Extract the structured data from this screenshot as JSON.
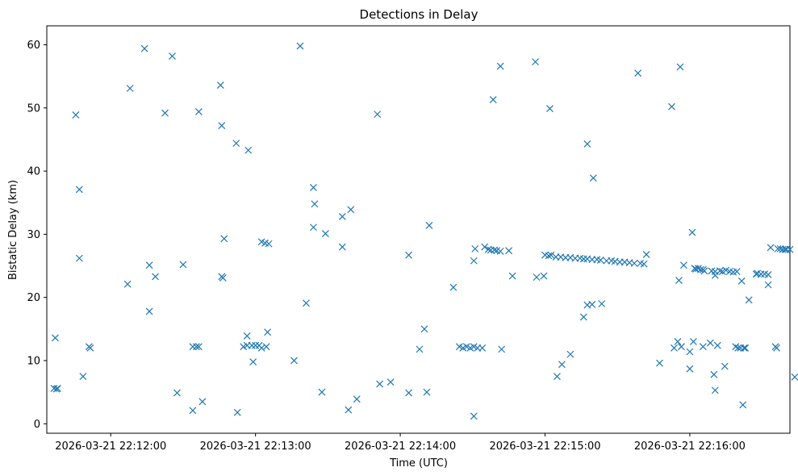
{
  "chart_data": {
    "type": "scatter",
    "title": "Detections in Delay",
    "xlabel": "Time (UTC)",
    "ylabel": "Bistatic Delay (km)",
    "marker": "x",
    "color": "#1f77b4",
    "xlim": [
      -26.5,
      281.5
    ],
    "ylim": [
      -1.5,
      63
    ],
    "x_unit": "seconds after 2026-03-21 22:12:00",
    "xticks": [
      {
        "value": 0,
        "label": "2026-03-21 22:12:00"
      },
      {
        "value": 60,
        "label": "2026-03-21 22:13:00"
      },
      {
        "value": 120,
        "label": "2026-03-21 22:14:00"
      },
      {
        "value": 180,
        "label": "2026-03-21 22:15:00"
      },
      {
        "value": 240,
        "label": "2026-03-21 22:16:00"
      }
    ],
    "yticks": [
      {
        "value": 0,
        "label": "0"
      },
      {
        "value": 10,
        "label": "10"
      },
      {
        "value": 20,
        "label": "20"
      },
      {
        "value": 30,
        "label": "30"
      },
      {
        "value": 40,
        "label": "40"
      },
      {
        "value": 50,
        "label": "50"
      },
      {
        "value": 60,
        "label": "60"
      }
    ],
    "points": [
      [
        -23.0,
        13.6
      ],
      [
        -23.5,
        5.6
      ],
      [
        -22.5,
        5.5
      ],
      [
        -22.0,
        5.6
      ],
      [
        -14.5,
        48.9
      ],
      [
        -13.0,
        37.1
      ],
      [
        -13.0,
        26.2
      ],
      [
        -11.5,
        7.5
      ],
      [
        -9.0,
        12.2
      ],
      [
        -8.5,
        12.0
      ],
      [
        7.0,
        22.1
      ],
      [
        8.0,
        53.1
      ],
      [
        14.0,
        59.4
      ],
      [
        16.0,
        25.1
      ],
      [
        16.0,
        17.8
      ],
      [
        18.5,
        23.3
      ],
      [
        22.5,
        49.2
      ],
      [
        25.5,
        58.2
      ],
      [
        27.5,
        4.9
      ],
      [
        30.0,
        25.2
      ],
      [
        34.0,
        2.1
      ],
      [
        34.0,
        12.2
      ],
      [
        35.5,
        12.2
      ],
      [
        36.5,
        49.4
      ],
      [
        36.5,
        12.2
      ],
      [
        38.0,
        3.5
      ],
      [
        45.5,
        53.6
      ],
      [
        46.0,
        47.2
      ],
      [
        46.0,
        23.3
      ],
      [
        46.5,
        23.1
      ],
      [
        47.0,
        29.3
      ],
      [
        52.0,
        44.4
      ],
      [
        52.5,
        1.8
      ],
      [
        55.0,
        12.2
      ],
      [
        56.5,
        12.4
      ],
      [
        56.5,
        13.9
      ],
      [
        57.0,
        43.3
      ],
      [
        58.5,
        12.4
      ],
      [
        59.0,
        9.8
      ],
      [
        60.0,
        12.4
      ],
      [
        61.5,
        12.4
      ],
      [
        62.5,
        28.8
      ],
      [
        62.5,
        12.0
      ],
      [
        64.0,
        28.6
      ],
      [
        64.5,
        12.2
      ],
      [
        65.5,
        28.5
      ],
      [
        65.0,
        14.5
      ],
      [
        76.0,
        10.0
      ],
      [
        78.5,
        59.8
      ],
      [
        81.0,
        19.1
      ],
      [
        84.0,
        37.4
      ],
      [
        84.0,
        31.1
      ],
      [
        84.5,
        34.8
      ],
      [
        87.5,
        5.0
      ],
      [
        89.0,
        30.1
      ],
      [
        96.0,
        32.8
      ],
      [
        96.0,
        28.0
      ],
      [
        98.5,
        2.2
      ],
      [
        99.5,
        33.9
      ],
      [
        102.0,
        3.9
      ],
      [
        110.5,
        49.0
      ],
      [
        111.5,
        6.3
      ],
      [
        116.0,
        6.6
      ],
      [
        123.5,
        26.7
      ],
      [
        123.5,
        4.9
      ],
      [
        128.0,
        11.8
      ],
      [
        130.0,
        15.0
      ],
      [
        131.0,
        5.0
      ],
      [
        132.0,
        31.4
      ],
      [
        142.0,
        21.6
      ],
      [
        144.5,
        12.2
      ],
      [
        146.0,
        12.0
      ],
      [
        147.5,
        12.2
      ],
      [
        149.0,
        12.0
      ],
      [
        150.5,
        1.2
      ],
      [
        150.5,
        25.8
      ],
      [
        150.5,
        12.2
      ],
      [
        151.0,
        27.7
      ],
      [
        152.0,
        12.0
      ],
      [
        154.0,
        12.0
      ],
      [
        155.0,
        28.0
      ],
      [
        156.5,
        27.6
      ],
      [
        157.5,
        27.5
      ],
      [
        159.0,
        27.5
      ],
      [
        158.5,
        51.3
      ],
      [
        160.0,
        27.4
      ],
      [
        161.5,
        27.3
      ],
      [
        161.5,
        56.6
      ],
      [
        162.0,
        11.8
      ],
      [
        165.0,
        27.4
      ],
      [
        166.5,
        23.4
      ],
      [
        176.0,
        57.3
      ],
      [
        176.5,
        23.2
      ],
      [
        179.5,
        23.4
      ],
      [
        180.0,
        26.7
      ],
      [
        181.5,
        26.6
      ],
      [
        182.5,
        26.7
      ],
      [
        182.0,
        49.9
      ],
      [
        184.5,
        26.4
      ],
      [
        185.0,
        7.5
      ],
      [
        186.5,
        26.4
      ],
      [
        187.0,
        9.4
      ],
      [
        188.5,
        26.3
      ],
      [
        190.5,
        26.3
      ],
      [
        190.5,
        11.0
      ],
      [
        192.5,
        26.2
      ],
      [
        194.5,
        26.2
      ],
      [
        196.0,
        26.1
      ],
      [
        196.0,
        16.9
      ],
      [
        197.5,
        26.1
      ],
      [
        197.5,
        44.3
      ],
      [
        197.5,
        18.8
      ],
      [
        199.5,
        26.0
      ],
      [
        199.5,
        18.9
      ],
      [
        200.0,
        38.9
      ],
      [
        201.5,
        26.0
      ],
      [
        203.0,
        25.9
      ],
      [
        203.5,
        19.0
      ],
      [
        205.5,
        25.8
      ],
      [
        207.5,
        25.8
      ],
      [
        209.0,
        25.7
      ],
      [
        211.0,
        25.6
      ],
      [
        213.0,
        25.6
      ],
      [
        215.0,
        25.5
      ],
      [
        217.0,
        25.4
      ],
      [
        218.5,
        55.5
      ],
      [
        219.5,
        25.4
      ],
      [
        221.0,
        25.3
      ],
      [
        222.0,
        26.8
      ],
      [
        227.5,
        9.6
      ],
      [
        232.5,
        50.2
      ],
      [
        233.5,
        12.0
      ],
      [
        235.0,
        13.0
      ],
      [
        235.5,
        22.7
      ],
      [
        236.0,
        56.5
      ],
      [
        236.5,
        12.2
      ],
      [
        237.5,
        25.1
      ],
      [
        240.0,
        11.4
      ],
      [
        241.0,
        30.3
      ],
      [
        240.0,
        8.7
      ],
      [
        241.5,
        13.0
      ],
      [
        242.0,
        24.6
      ],
      [
        242.5,
        24.5
      ],
      [
        243.5,
        24.6
      ],
      [
        244.5,
        24.4
      ],
      [
        245.5,
        12.2
      ],
      [
        245.5,
        24.4
      ],
      [
        246.0,
        24.2
      ],
      [
        248.5,
        12.8
      ],
      [
        249.0,
        24.2
      ],
      [
        250.5,
        24.1
      ],
      [
        250.5,
        23.5
      ],
      [
        250.0,
        7.8
      ],
      [
        250.5,
        5.3
      ],
      [
        251.5,
        12.4
      ],
      [
        252.5,
        24.2
      ],
      [
        253.5,
        24.1
      ],
      [
        254.5,
        9.1
      ],
      [
        255.0,
        24.3
      ],
      [
        256.5,
        24.1
      ],
      [
        258.0,
        24.0
      ],
      [
        259.0,
        12.2
      ],
      [
        259.5,
        24.1
      ],
      [
        260.0,
        12.0
      ],
      [
        261.0,
        12.0
      ],
      [
        261.5,
        22.6
      ],
      [
        262.0,
        3.0
      ],
      [
        262.5,
        12.0
      ],
      [
        263.0,
        12.0
      ],
      [
        264.5,
        19.6
      ],
      [
        267.5,
        23.7
      ],
      [
        268.0,
        23.8
      ],
      [
        269.5,
        23.7
      ],
      [
        271.0,
        23.7
      ],
      [
        272.5,
        22.0
      ],
      [
        272.5,
        23.6
      ],
      [
        273.5,
        27.9
      ],
      [
        275.5,
        12.2
      ],
      [
        276.0,
        12.0
      ],
      [
        276.5,
        27.7
      ],
      [
        277.5,
        27.7
      ],
      [
        278.5,
        27.6
      ],
      [
        279.5,
        27.6
      ],
      [
        280.0,
        27.6
      ],
      [
        281.5,
        27.6
      ],
      [
        283.5,
        7.4
      ]
    ]
  }
}
